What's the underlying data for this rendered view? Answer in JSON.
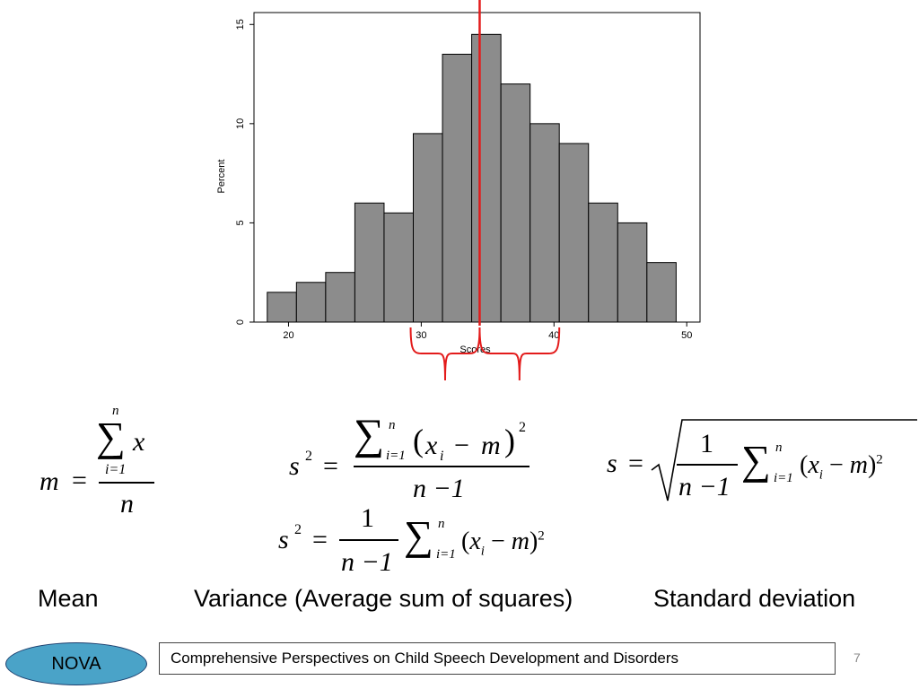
{
  "chart_data": {
    "type": "bar",
    "subtype": "histogram",
    "title": "",
    "xlabel": "Scores",
    "ylabel": "Percent",
    "bin_width": 2.2,
    "x": [
      19.5,
      21.7,
      23.9,
      26.1,
      28.3,
      30.5,
      32.7,
      34.9,
      37.1,
      39.3,
      41.5,
      43.7,
      45.9,
      48.1
    ],
    "values": [
      1.5,
      2.0,
      2.5,
      6.0,
      5.5,
      9.5,
      13.5,
      14.5,
      12.0,
      10.0,
      9.0,
      6.0,
      5.0,
      3.0
    ],
    "xlim": [
      17.4,
      51.0
    ],
    "ylim": [
      0,
      15.6
    ],
    "xticks": [
      "20",
      "30",
      "40",
      "50"
    ],
    "yticks": [
      "0",
      "5",
      "10",
      "15"
    ],
    "bar_color": "#8c8c8c",
    "mean_line_x": 34.4,
    "mean_line_color": "#e31b1b",
    "brackets": [
      {
        "from": 29.2,
        "to": 34.4
      },
      {
        "from": 34.4,
        "to": 40.4
      }
    ],
    "grid": false,
    "legend": "none"
  },
  "formulas": {
    "mean_lhs": "m",
    "mean_upper": "n",
    "mean_lower": "i=1",
    "mean_var": "x",
    "mean_den": "n",
    "var_lhs": "s",
    "var_exp": "2",
    "var_num_sum_upper": "n",
    "var_num_sum_lower": "i=1",
    "var_num_term": "x",
    "var_sub": "i",
    "var_minus": "m",
    "var_den": "n −1",
    "var2_one": "1",
    "var2_den": "n −1",
    "sd_lhs": "s",
    "sd_one": "1",
    "sd_den": "n −1"
  },
  "captions": {
    "mean": "Mean",
    "variance": "Variance (Average sum of squares)",
    "sd": "Standard deviation"
  },
  "footer": {
    "badge": "NOVA",
    "title": "Comprehensive Perspectives on Child Speech Development and Disorders",
    "page_number": "7"
  },
  "colors": {
    "badge_fill": "#4aa3c8",
    "badge_border": "#1d3f6e"
  }
}
